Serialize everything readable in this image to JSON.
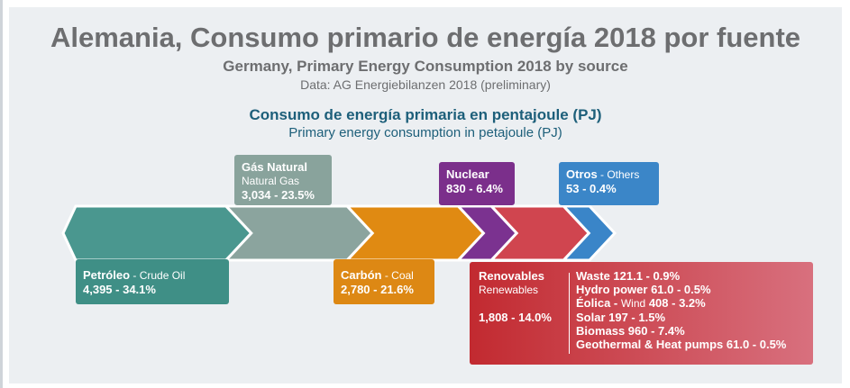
{
  "title": "Alemania, Consumo primario de energía 2018 por fuente",
  "subtitle": "Germany, Primary Energy Consumption 2018 by source",
  "source": "Data: AG Energiebilanzen 2018 (preliminary)",
  "heading_es": "Consumo de energía primaria en pentajoule (PJ)",
  "heading_en": "Primary energy consumption in petajoule (PJ)",
  "labels": {
    "gas_es": "Gás Natural",
    "gas_en": "Natural Gas",
    "gas_val": "3,034 - 23.5%",
    "oil_es": "Petróleo",
    "oil_en": "Crude Oil",
    "oil_val": "4,395 - 34.1%",
    "coal_es": "Carbón",
    "coal_en": "Coal",
    "coal_val": "2,780 - 21.6%",
    "nuc_es": "Nuclear",
    "nuc_val": "830 - 6.4%",
    "oth_es": "Otros",
    "oth_en": "Others",
    "oth_val": "53 - 0.4%",
    "ren_es": "Renovables",
    "ren_en": "Renewables",
    "ren_val": "1,808 - 14.0%",
    "waste": "Waste 121.1 - 0.9%",
    "hydro": "Hydro power 61.0 - 0.5%",
    "wind_es": "Éolica",
    "wind_en": "Wind",
    "wind_val": "408 - 3.2%",
    "solar": "Solar 197 - 1.5%",
    "biomass": "Biomass 960 - 7.4%",
    "geo": "Geothermal & Heat pumps 61.0 - 0.5%"
  },
  "colors": {
    "oil": "#4a978f",
    "gas": "#8ba49e",
    "coal": "#e08a12",
    "nuclear": "#7b3290",
    "renewables": "#d0454f",
    "others": "#3a85c8"
  },
  "chart_data": {
    "type": "bar",
    "title": "Consumo de energía primaria en pentajoule (PJ)",
    "categories": [
      "Petróleo",
      "Gás Natural",
      "Carbón",
      "Nuclear",
      "Renovables",
      "Otros"
    ],
    "values": [
      4395,
      3034,
      2780,
      830,
      1808,
      53
    ],
    "percentages": [
      34.1,
      23.5,
      21.6,
      6.4,
      14.0,
      0.4
    ],
    "renewables_breakdown": {
      "categories": [
        "Waste",
        "Hydro power",
        "Wind",
        "Solar",
        "Biomass",
        "Geothermal & Heat pumps"
      ],
      "values": [
        121.1,
        61.0,
        408,
        197,
        960,
        61.0
      ],
      "percentages": [
        0.9,
        0.5,
        3.2,
        1.5,
        7.4,
        0.5
      ]
    }
  }
}
